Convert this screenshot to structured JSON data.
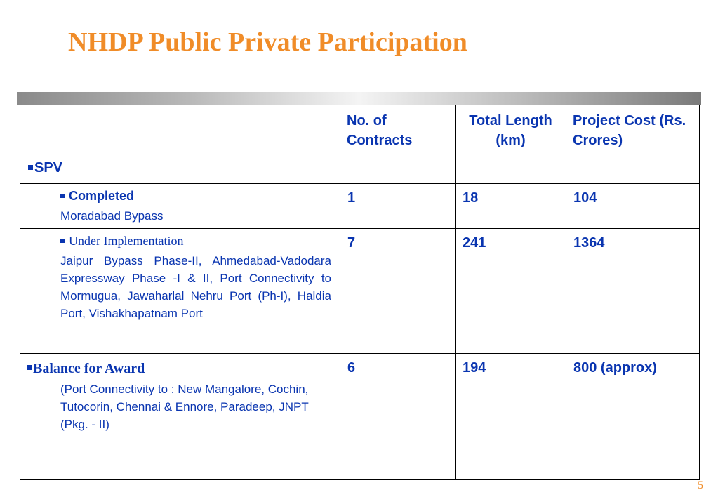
{
  "slide": {
    "title": "NHDP Public Private Participation",
    "page_number": "5"
  },
  "table": {
    "headers": {
      "contracts": "No. of Contracts",
      "length": "Total Length (km)",
      "cost": "Project Cost (Rs. Crores)"
    },
    "spv": {
      "label": "SPV"
    },
    "completed": {
      "label": "Completed",
      "description": "Moradabad Bypass",
      "contracts": "1",
      "length": "18",
      "cost": "104"
    },
    "under_implementation": {
      "label": "Under Implementation",
      "description": "Jaipur Bypass Phase-II, Ahmedabad-Vadodara Expressway Phase -I & II, Port Connectivity to Mormugua, Jawaharlal Nehru Port (Ph-I), Haldia Port, Vishakhapatnam Port",
      "contracts": "7",
      "length": "241",
      "cost": "1364"
    },
    "balance_for_award": {
      "label": "Balance for Award",
      "description": "(Port Connectivity to : New Mangalore, Cochin, Tutocorin, Chennai & Ennore, Paradeep, JNPT (Pkg. - II)",
      "contracts": "6",
      "length": "194",
      "cost": "800 (approx)"
    }
  },
  "colors": {
    "title": "#f08c28",
    "table_text": "#0a35b0",
    "border": "#000000"
  }
}
